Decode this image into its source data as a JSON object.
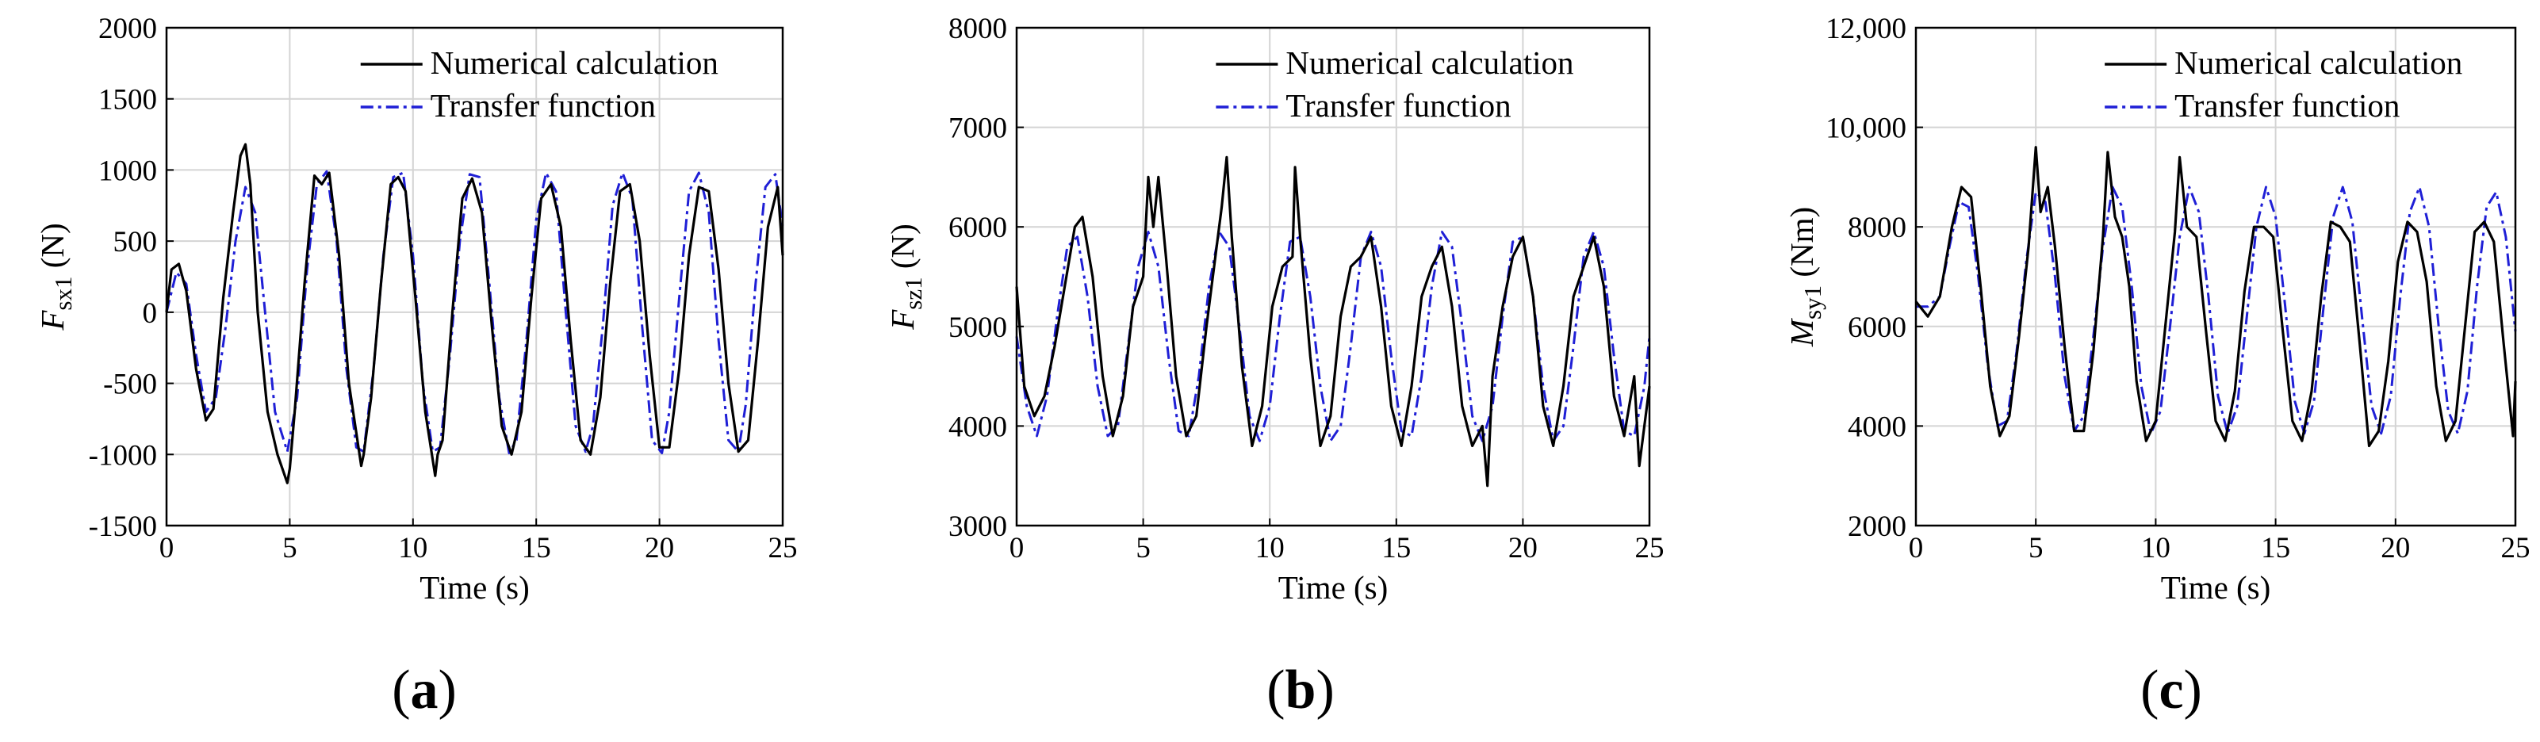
{
  "figure": {
    "panels": [
      {
        "label_pre": "(",
        "label_letter": "a",
        "label_post": ")"
      },
      {
        "label_pre": "(",
        "label_letter": "b",
        "label_post": ")"
      },
      {
        "label_pre": "(",
        "label_letter": "c",
        "label_post": ")"
      }
    ]
  },
  "chart_data": [
    {
      "type": "line",
      "xlabel": "Time (s)",
      "ylabel_main": "F",
      "ylabel_sub": "sx1",
      "ylabel_unit": " (N)",
      "xlim": [
        0,
        25
      ],
      "ylim": [
        -1500,
        2000
      ],
      "xticks": [
        "0",
        "5",
        "10",
        "15",
        "20",
        "25"
      ],
      "yticks": [
        "-1500",
        "-1000",
        "-500",
        "0",
        "500",
        "1000",
        "1500",
        "2000"
      ],
      "grid": true,
      "legend_position": "top-right",
      "series": [
        {
          "name": "Numerical calculation",
          "color": "#000000",
          "style": "solid",
          "x": [
            0,
            0.2,
            0.5,
            0.8,
            1.2,
            1.6,
            1.9,
            2.3,
            2.7,
            3.0,
            3.2,
            3.4,
            3.7,
            4.1,
            4.5,
            4.9,
            5.0,
            5.2,
            5.6,
            6.0,
            6.3,
            6.6,
            7.0,
            7.4,
            7.9,
            8.0,
            8.3,
            8.7,
            9.1,
            9.4,
            9.7,
            10.1,
            10.5,
            10.9,
            11.0,
            11.2,
            11.6,
            12.0,
            12.4,
            12.8,
            13.2,
            13.6,
            14.0,
            14.4,
            14.8,
            15.2,
            15.6,
            16.0,
            16.4,
            16.8,
            17.2,
            17.6,
            18.0,
            18.4,
            18.8,
            19.2,
            19.6,
            20.0,
            20.4,
            20.8,
            21.2,
            21.6,
            22.0,
            22.4,
            22.8,
            23.2,
            23.6,
            24.0,
            24.4,
            24.8,
            25.0
          ],
          "y": [
            0,
            300,
            340,
            150,
            -400,
            -760,
            -680,
            100,
            700,
            1100,
            1180,
            900,
            0,
            -700,
            -1000,
            -1200,
            -1100,
            -700,
            200,
            960,
            900,
            980,
            400,
            -500,
            -1080,
            -1000,
            -600,
            200,
            900,
            950,
            850,
            100,
            -700,
            -1150,
            -1000,
            -900,
            0,
            800,
            940,
            700,
            -100,
            -800,
            -1000,
            -700,
            100,
            800,
            900,
            600,
            -200,
            -900,
            -1000,
            -600,
            200,
            850,
            900,
            500,
            -300,
            -950,
            -950,
            -400,
            400,
            880,
            850,
            300,
            -500,
            -980,
            -900,
            -200,
            600,
            880,
            400
          ]
        },
        {
          "name": "Transfer function",
          "color": "#1f1fd6",
          "style": "dashdot",
          "x": [
            0,
            0.4,
            0.8,
            1.2,
            1.6,
            2.0,
            2.4,
            2.8,
            3.2,
            3.6,
            4.0,
            4.4,
            4.9,
            5.3,
            5.7,
            6.1,
            6.5,
            6.9,
            7.3,
            7.7,
            8.0,
            8.4,
            8.8,
            9.2,
            9.6,
            10.0,
            10.4,
            10.8,
            11.1,
            11.5,
            11.9,
            12.3,
            12.7,
            13.1,
            13.5,
            13.9,
            14.2,
            14.6,
            15.0,
            15.4,
            15.8,
            16.2,
            16.6,
            17.0,
            17.3,
            17.7,
            18.1,
            18.5,
            18.9,
            19.3,
            19.7,
            20.1,
            20.4,
            20.8,
            21.2,
            21.6,
            22.0,
            22.4,
            22.8,
            23.2,
            23.5,
            23.9,
            24.3,
            24.7,
            25.0
          ],
          "y": [
            0,
            280,
            200,
            -300,
            -700,
            -600,
            -100,
            500,
            880,
            700,
            0,
            -700,
            -980,
            -600,
            300,
            900,
            990,
            500,
            -400,
            -950,
            -980,
            -400,
            400,
            950,
            980,
            400,
            -500,
            -980,
            -950,
            -300,
            500,
            970,
            950,
            200,
            -600,
            -990,
            -900,
            -200,
            650,
            980,
            850,
            0,
            -800,
            -980,
            -800,
            -100,
            750,
            980,
            800,
            -100,
            -900,
            -990,
            -700,
            100,
            850,
            980,
            700,
            -200,
            -900,
            -980,
            -650,
            200,
            880,
            970,
            600
          ]
        }
      ]
    },
    {
      "type": "line",
      "xlabel": "Time (s)",
      "ylabel_main": "F",
      "ylabel_sub": "sz1",
      "ylabel_unit": " (N)",
      "xlim": [
        0,
        25
      ],
      "ylim": [
        3000,
        8000
      ],
      "xticks": [
        "0",
        "5",
        "10",
        "15",
        "20",
        "25"
      ],
      "yticks": [
        "3000",
        "4000",
        "5000",
        "6000",
        "7000",
        "8000"
      ],
      "grid": true,
      "legend_position": "top-right",
      "series": [
        {
          "name": "Numerical calculation",
          "color": "#000000",
          "style": "solid",
          "x": [
            0,
            0.3,
            0.7,
            1.1,
            1.5,
            1.9,
            2.3,
            2.6,
            3.0,
            3.4,
            3.8,
            4.2,
            4.6,
            5.0,
            5.2,
            5.4,
            5.6,
            5.9,
            6.3,
            6.7,
            7.1,
            7.5,
            7.9,
            8.1,
            8.3,
            8.5,
            8.9,
            9.3,
            9.7,
            10.1,
            10.5,
            10.9,
            11.0,
            11.2,
            11.6,
            12.0,
            12.4,
            12.8,
            13.2,
            13.6,
            14.0,
            14.4,
            14.8,
            15.2,
            15.6,
            16.0,
            16.4,
            16.8,
            17.2,
            17.6,
            18.0,
            18.4,
            18.6,
            18.8,
            19.2,
            19.6,
            20.0,
            20.4,
            20.8,
            21.2,
            21.6,
            22.0,
            22.4,
            22.8,
            23.2,
            23.6,
            24.0,
            24.4,
            24.6,
            25.0
          ],
          "y": [
            5400,
            4400,
            4100,
            4300,
            4800,
            5400,
            6000,
            6100,
            5500,
            4500,
            3900,
            4300,
            5200,
            5500,
            6500,
            6000,
            6500,
            5700,
            4500,
            3900,
            4100,
            5000,
            5800,
            6200,
            6700,
            5900,
            4600,
            3800,
            4200,
            5200,
            5600,
            5700,
            6600,
            5900,
            4700,
            3800,
            4100,
            5100,
            5600,
            5700,
            5900,
            5200,
            4200,
            3800,
            4400,
            5300,
            5600,
            5800,
            5200,
            4200,
            3800,
            4000,
            3400,
            4500,
            5200,
            5700,
            5900,
            5300,
            4200,
            3800,
            4400,
            5300,
            5600,
            5900,
            5400,
            4300,
            3900,
            4500,
            3600,
            4400
          ]
        },
        {
          "name": "Transfer function",
          "color": "#1f1fd6",
          "style": "dashdot",
          "x": [
            0,
            0.4,
            0.8,
            1.2,
            1.6,
            2.0,
            2.4,
            2.8,
            3.2,
            3.6,
            4.0,
            4.4,
            4.8,
            5.2,
            5.6,
            6.0,
            6.4,
            6.8,
            7.2,
            7.6,
            8.0,
            8.4,
            8.8,
            9.2,
            9.6,
            10.0,
            10.4,
            10.8,
            11.2,
            11.6,
            12.0,
            12.4,
            12.8,
            13.2,
            13.6,
            14.0,
            14.4,
            14.8,
            15.2,
            15.6,
            16.0,
            16.4,
            16.8,
            17.2,
            17.6,
            18.0,
            18.4,
            18.8,
            19.2,
            19.6,
            20.0,
            20.4,
            20.8,
            21.2,
            21.6,
            22.0,
            22.4,
            22.8,
            23.2,
            23.6,
            24.0,
            24.4,
            24.8,
            25.0
          ],
          "y": [
            4900,
            4200,
            3900,
            4300,
            5100,
            5800,
            5900,
            5300,
            4400,
            3900,
            4000,
            4800,
            5600,
            5950,
            5600,
            4700,
            3950,
            3900,
            4500,
            5400,
            5950,
            5800,
            5000,
            4100,
            3850,
            4200,
            5100,
            5850,
            5900,
            5300,
            4400,
            3850,
            4000,
            4800,
            5700,
            5950,
            5600,
            4700,
            3950,
            3900,
            4500,
            5400,
            5950,
            5800,
            5000,
            4100,
            3850,
            4200,
            5100,
            5850,
            5900,
            5300,
            4400,
            3850,
            4000,
            4800,
            5700,
            5950,
            5600,
            4700,
            3950,
            3900,
            4400,
            4900
          ]
        }
      ]
    },
    {
      "type": "line",
      "xlabel": "Time (s)",
      "ylabel_main": "M",
      "ylabel_sub": "sy1",
      "ylabel_unit": " (Nm)",
      "xlim": [
        0,
        25
      ],
      "ylim": [
        2000,
        12000
      ],
      "xticks": [
        "0",
        "5",
        "10",
        "15",
        "20",
        "25"
      ],
      "yticks": [
        "2000",
        "4000",
        "6000",
        "8000",
        "10,000",
        "12,000"
      ],
      "grid": true,
      "legend_position": "top-right",
      "series": [
        {
          "name": "Numerical calculation",
          "color": "#000000",
          "style": "solid",
          "x": [
            0,
            0.5,
            1.0,
            1.5,
            1.9,
            2.3,
            2.7,
            3.1,
            3.5,
            3.9,
            4.3,
            4.7,
            5.0,
            5.2,
            5.5,
            5.8,
            6.2,
            6.6,
            7.0,
            7.4,
            7.8,
            8.0,
            8.3,
            8.6,
            8.9,
            9.2,
            9.6,
            10.0,
            10.4,
            10.8,
            11.0,
            11.3,
            11.7,
            12.1,
            12.5,
            12.9,
            13.3,
            13.7,
            14.1,
            14.5,
            14.9,
            15.3,
            15.7,
            16.1,
            16.5,
            16.9,
            17.3,
            17.7,
            18.1,
            18.5,
            18.9,
            19.3,
            19.7,
            20.1,
            20.5,
            20.9,
            21.3,
            21.7,
            22.1,
            22.5,
            22.9,
            23.3,
            23.7,
            24.1,
            24.5,
            24.9,
            25.0
          ],
          "y": [
            6500,
            6200,
            6600,
            8000,
            8800,
            8600,
            6800,
            4800,
            3800,
            4200,
            5800,
            7600,
            9600,
            8300,
            8800,
            7600,
            5600,
            3900,
            3900,
            5500,
            7800,
            9500,
            8200,
            7800,
            6800,
            4900,
            3700,
            4100,
            6000,
            7900,
            9400,
            8000,
            7800,
            5900,
            4100,
            3700,
            4700,
            6700,
            8000,
            8000,
            7800,
            5900,
            4100,
            3700,
            4700,
            6600,
            8100,
            8000,
            7700,
            5700,
            3600,
            3900,
            5300,
            7300,
            8100,
            7900,
            6900,
            4800,
            3700,
            4100,
            6000,
            7900,
            8100,
            7700,
            5700,
            3800,
            4900
          ]
        },
        {
          "name": "Transfer function",
          "color": "#1f1fd6",
          "style": "dashdot",
          "x": [
            0,
            0.5,
            1.0,
            1.4,
            1.8,
            2.2,
            2.6,
            3.0,
            3.4,
            3.8,
            4.2,
            4.6,
            5.0,
            5.4,
            5.8,
            6.2,
            6.6,
            7.0,
            7.4,
            7.8,
            8.2,
            8.6,
            9.0,
            9.4,
            9.8,
            10.2,
            10.6,
            11.0,
            11.4,
            11.8,
            12.2,
            12.6,
            13.0,
            13.4,
            13.8,
            14.2,
            14.6,
            15.0,
            15.4,
            15.8,
            16.2,
            16.6,
            17.0,
            17.4,
            17.8,
            18.2,
            18.6,
            19.0,
            19.4,
            19.8,
            20.2,
            20.6,
            21.0,
            21.4,
            21.8,
            22.2,
            22.6,
            23.0,
            23.4,
            23.8,
            24.2,
            24.6,
            25.0
          ],
          "y": [
            6400,
            6400,
            6600,
            7600,
            8500,
            8400,
            7000,
            5200,
            4000,
            4100,
            5500,
            7300,
            8700,
            8500,
            7000,
            5000,
            3900,
            4200,
            5800,
            7600,
            8800,
            8400,
            6800,
            4800,
            3850,
            4300,
            6000,
            7800,
            8800,
            8300,
            6600,
            4600,
            3850,
            4400,
            6200,
            8000,
            8800,
            8200,
            6400,
            4500,
            3850,
            4500,
            6400,
            8200,
            8800,
            8100,
            6200,
            4400,
            3850,
            4600,
            6600,
            8300,
            8800,
            8000,
            6000,
            4300,
            3850,
            4700,
            6800,
            8400,
            8700,
            7800,
            5900
          ]
        }
      ]
    }
  ]
}
